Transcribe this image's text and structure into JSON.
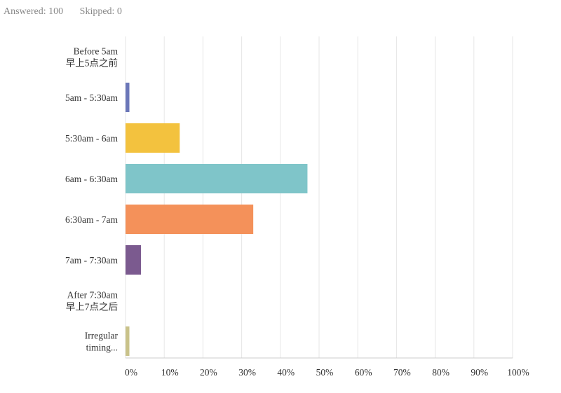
{
  "summary": {
    "answered": "Answered: 100",
    "skipped": "Skipped: 0"
  },
  "chart_data": {
    "type": "bar",
    "orientation": "horizontal",
    "categories": [
      [
        "Before 5am",
        "早上5点之前"
      ],
      [
        "5am - 5:30am"
      ],
      [
        "5:30am - 6am"
      ],
      [
        "6am - 6:30am"
      ],
      [
        "6:30am - 7am"
      ],
      [
        "7am - 7:30am"
      ],
      [
        "After 7:30am",
        "早上7点之后"
      ],
      [
        "Irregular",
        "timing..."
      ]
    ],
    "values": [
      0,
      1,
      14,
      47,
      33,
      4,
      0,
      1
    ],
    "colors": [
      "#2db6c1",
      "#6b77b8",
      "#f3c23e",
      "#7fc5c9",
      "#f4915a",
      "#7b5a8f",
      "#b0b0b0",
      "#c9c28a"
    ],
    "xlim": [
      0,
      100
    ],
    "x_ticks": [
      "0%",
      "10%",
      "20%",
      "30%",
      "40%",
      "50%",
      "60%",
      "70%",
      "80%",
      "90%",
      "100%"
    ],
    "grid": true,
    "title": "",
    "xlabel": "",
    "ylabel": ""
  }
}
